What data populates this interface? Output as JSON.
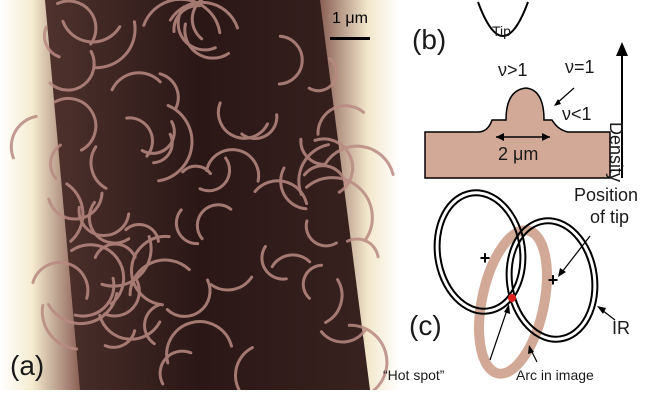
{
  "panel_a": {
    "label": "(a)",
    "scale_label": "1 μm"
  },
  "panel_b": {
    "label": "(b)",
    "tip_label": "Tip",
    "nu_eq1": "ν=1",
    "nu_gt1": "ν>1",
    "nu_lt1": "ν<1",
    "width_label": "2 μm",
    "axis_label": "Density"
  },
  "panel_c": {
    "label": "(c)",
    "position_label_line1": "Position",
    "position_label_line2": "of tip",
    "ir_label": "IR",
    "hotspot_label": "“Hot spot”",
    "arc_label": "Arc in image"
  },
  "colors": {
    "dark_bg": "#2a1716",
    "arc": "#b98a82",
    "tan": "#d2a896",
    "hotspot": "#e0201c",
    "edge_glow": "#f5ecd0"
  }
}
